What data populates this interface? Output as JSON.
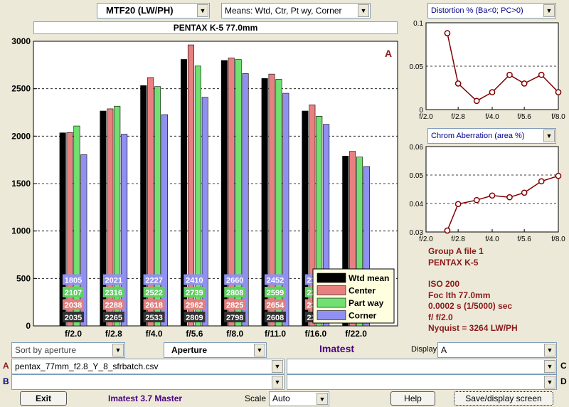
{
  "header": {
    "mtf_select": "MTF20 (LW/PH)",
    "means_select": "Means: Wtd, Ctr, Pt wy, Corner",
    "camera_title": "PENTAX K-5   77.0mm"
  },
  "chart_data": [
    {
      "type": "bar",
      "title": "",
      "corner_label": "A",
      "categories": [
        "f/2.0",
        "f/2.8",
        "f/4.0",
        "f/5.6",
        "f/8.0",
        "f/11.0",
        "f/16.0",
        "f/22.0"
      ],
      "ylim": [
        0,
        3000
      ],
      "yticks": [
        0,
        500,
        1000,
        1500,
        2000,
        2500,
        3000
      ],
      "series": [
        {
          "name": "Wtd mean",
          "color": "#000000",
          "label_color": "#333333",
          "values": [
            2035,
            2265,
            2533,
            2809,
            2798,
            2608,
            2265,
            1790
          ]
        },
        {
          "name": "Center",
          "color": "#e88080",
          "label_color": "#e08080",
          "values": [
            2038,
            2288,
            2618,
            2962,
            2825,
            2654,
            2330,
            1840
          ]
        },
        {
          "name": "Part way",
          "color": "#70e070",
          "label_color": "#60d060",
          "values": [
            2107,
            2316,
            2522,
            2739,
            2808,
            2599,
            2210,
            1780
          ]
        },
        {
          "name": "Corner",
          "color": "#9090f0",
          "label_color": "#9090f0",
          "values": [
            1805,
            2021,
            2227,
            2410,
            2660,
            2452,
            2125,
            1680
          ]
        }
      ],
      "legend": "bottom-right",
      "grid": true
    },
    {
      "type": "line",
      "select_label": "Distortion %  (Ba<0; PC>0)",
      "x": [
        2.5,
        2.8,
        3.4,
        4.0,
        4.8,
        5.6,
        6.7,
        8.0
      ],
      "xtick_labels": [
        "f/2.0",
        "f/2.8",
        "f/4.0",
        "f/5.6",
        "f/8.0"
      ],
      "y": [
        0.088,
        0.03,
        0.01,
        0.02,
        0.04,
        0.03,
        0.04,
        0.02
      ],
      "yticks": [
        "0.1",
        "0.05",
        "0"
      ],
      "ylim": [
        0,
        0.1
      ],
      "color": "#800000"
    },
    {
      "type": "line",
      "select_label": "Chrom Aberration (area %)",
      "x": [
        2.5,
        2.8,
        3.4,
        4.0,
        4.8,
        5.6,
        6.7,
        8.0
      ],
      "xtick_labels": [
        "f/2.0",
        "f/2.8",
        "f/4.0",
        "f/5.6",
        "f/8.0"
      ],
      "y": [
        0.0305,
        0.0398,
        0.0412,
        0.0428,
        0.0422,
        0.0438,
        0.0478,
        0.0497
      ],
      "yticks": [
        "0.06",
        "0.05",
        "0.04",
        "0.03"
      ],
      "ylim": [
        0.03,
        0.06
      ],
      "color": "#800000"
    }
  ],
  "info": {
    "group": "Group A file 1",
    "camera": "PENTAX K-5",
    "iso": "ISO  200",
    "focal": "Foc lth  77.0mm",
    "shutter": "0.0002 s  (1/5000)  sec",
    "fstop": "f/  f/2.0",
    "nyquist": "Nyquist = 3264 LW/PH"
  },
  "controls": {
    "sort_select": "Sort by aperture",
    "aperture_select": "Aperture",
    "brand": "Imatest",
    "display_label": "Display",
    "display_select": "A",
    "row_a_label": "A",
    "row_a_value": "pentax_77mm_f2.8_Y_8_sfrbatch.csv",
    "row_b_label": "B",
    "row_b_value": "",
    "row_c_label": "C",
    "row_c_value": "",
    "row_d_label": "D",
    "row_d_value": "",
    "exit_label": "Exit",
    "version": "Imatest 3.7 Master",
    "scale_label": "Scale",
    "scale_select": "Auto",
    "help_label": "Help",
    "save_label": "Save/display screen"
  }
}
